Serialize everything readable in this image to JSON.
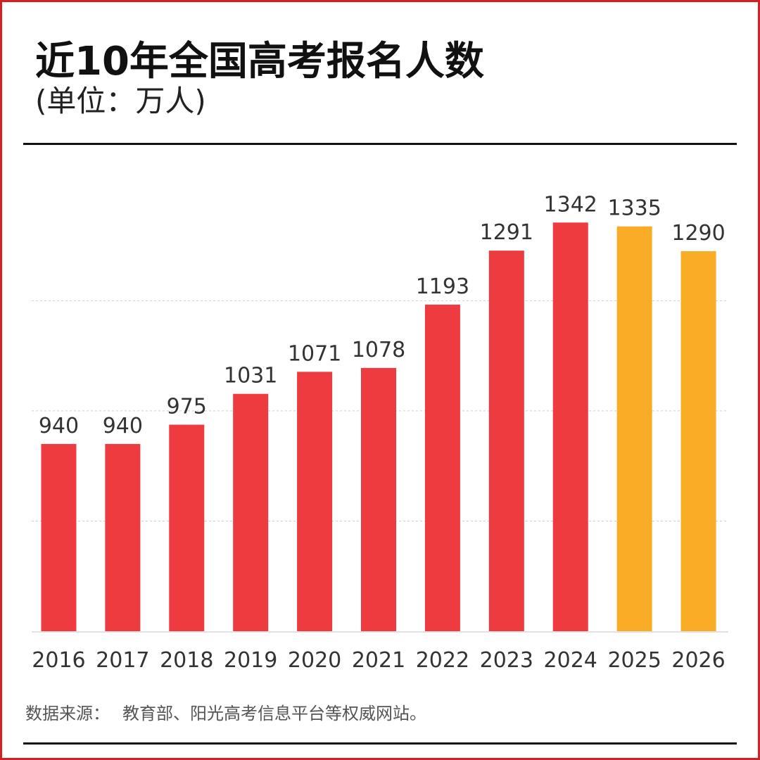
{
  "title": "近10年全国高考报名人数",
  "subtitle": "(单位：万人)",
  "source": {
    "label": "数据来源：",
    "text": "教育部、阳光高考信息平台等权威网站。"
  },
  "colors": {
    "frame": "#d32020",
    "bar_actual": "#ee3b3f",
    "bar_projected": "#f9ac26",
    "grid": "#cfcfcf",
    "text": "#333333"
  },
  "chart_data": {
    "type": "bar",
    "categories": [
      "2016",
      "2017",
      "2018",
      "2019",
      "2020",
      "2021",
      "2022",
      "2023",
      "2024",
      "2025",
      "2026"
    ],
    "values": [
      940,
      940,
      975,
      1031,
      1071,
      1078,
      1193,
      1291,
      1342,
      1335,
      1290
    ],
    "highlighted": [
      "2025",
      "2026"
    ],
    "title": "近10年全国高考报名人数",
    "subtitle": "(单位：万人)",
    "xlabel": "",
    "ylabel": "",
    "ylim": [
      600,
      1450
    ],
    "grid": true,
    "legend": "none"
  }
}
